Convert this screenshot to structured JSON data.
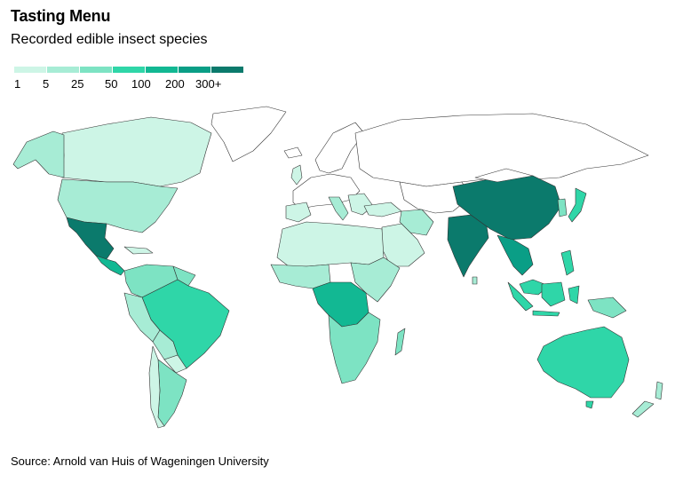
{
  "title": "Tasting Menu",
  "subtitle": "Recorded edible insect species",
  "source": "Source: Arnold van Huis of Wageningen University",
  "legend": {
    "ticks": [
      "1",
      "5",
      "25",
      "50",
      "100",
      "200",
      "300+"
    ],
    "colors": [
      "#cdf5e6",
      "#a7ecd5",
      "#7de3c3",
      "#2fd6a8",
      "#12b893",
      "#0a9e86",
      "#0b7a6c"
    ]
  },
  "map_colors": {
    "none": "#ffffff",
    "c1": "#cdf5e6",
    "c2": "#a7ecd5",
    "c3": "#7de3c3",
    "c4": "#2fd6a8",
    "c5": "#12b893",
    "c6": "#0a9e86",
    "c7": "#0b7a6c"
  }
}
